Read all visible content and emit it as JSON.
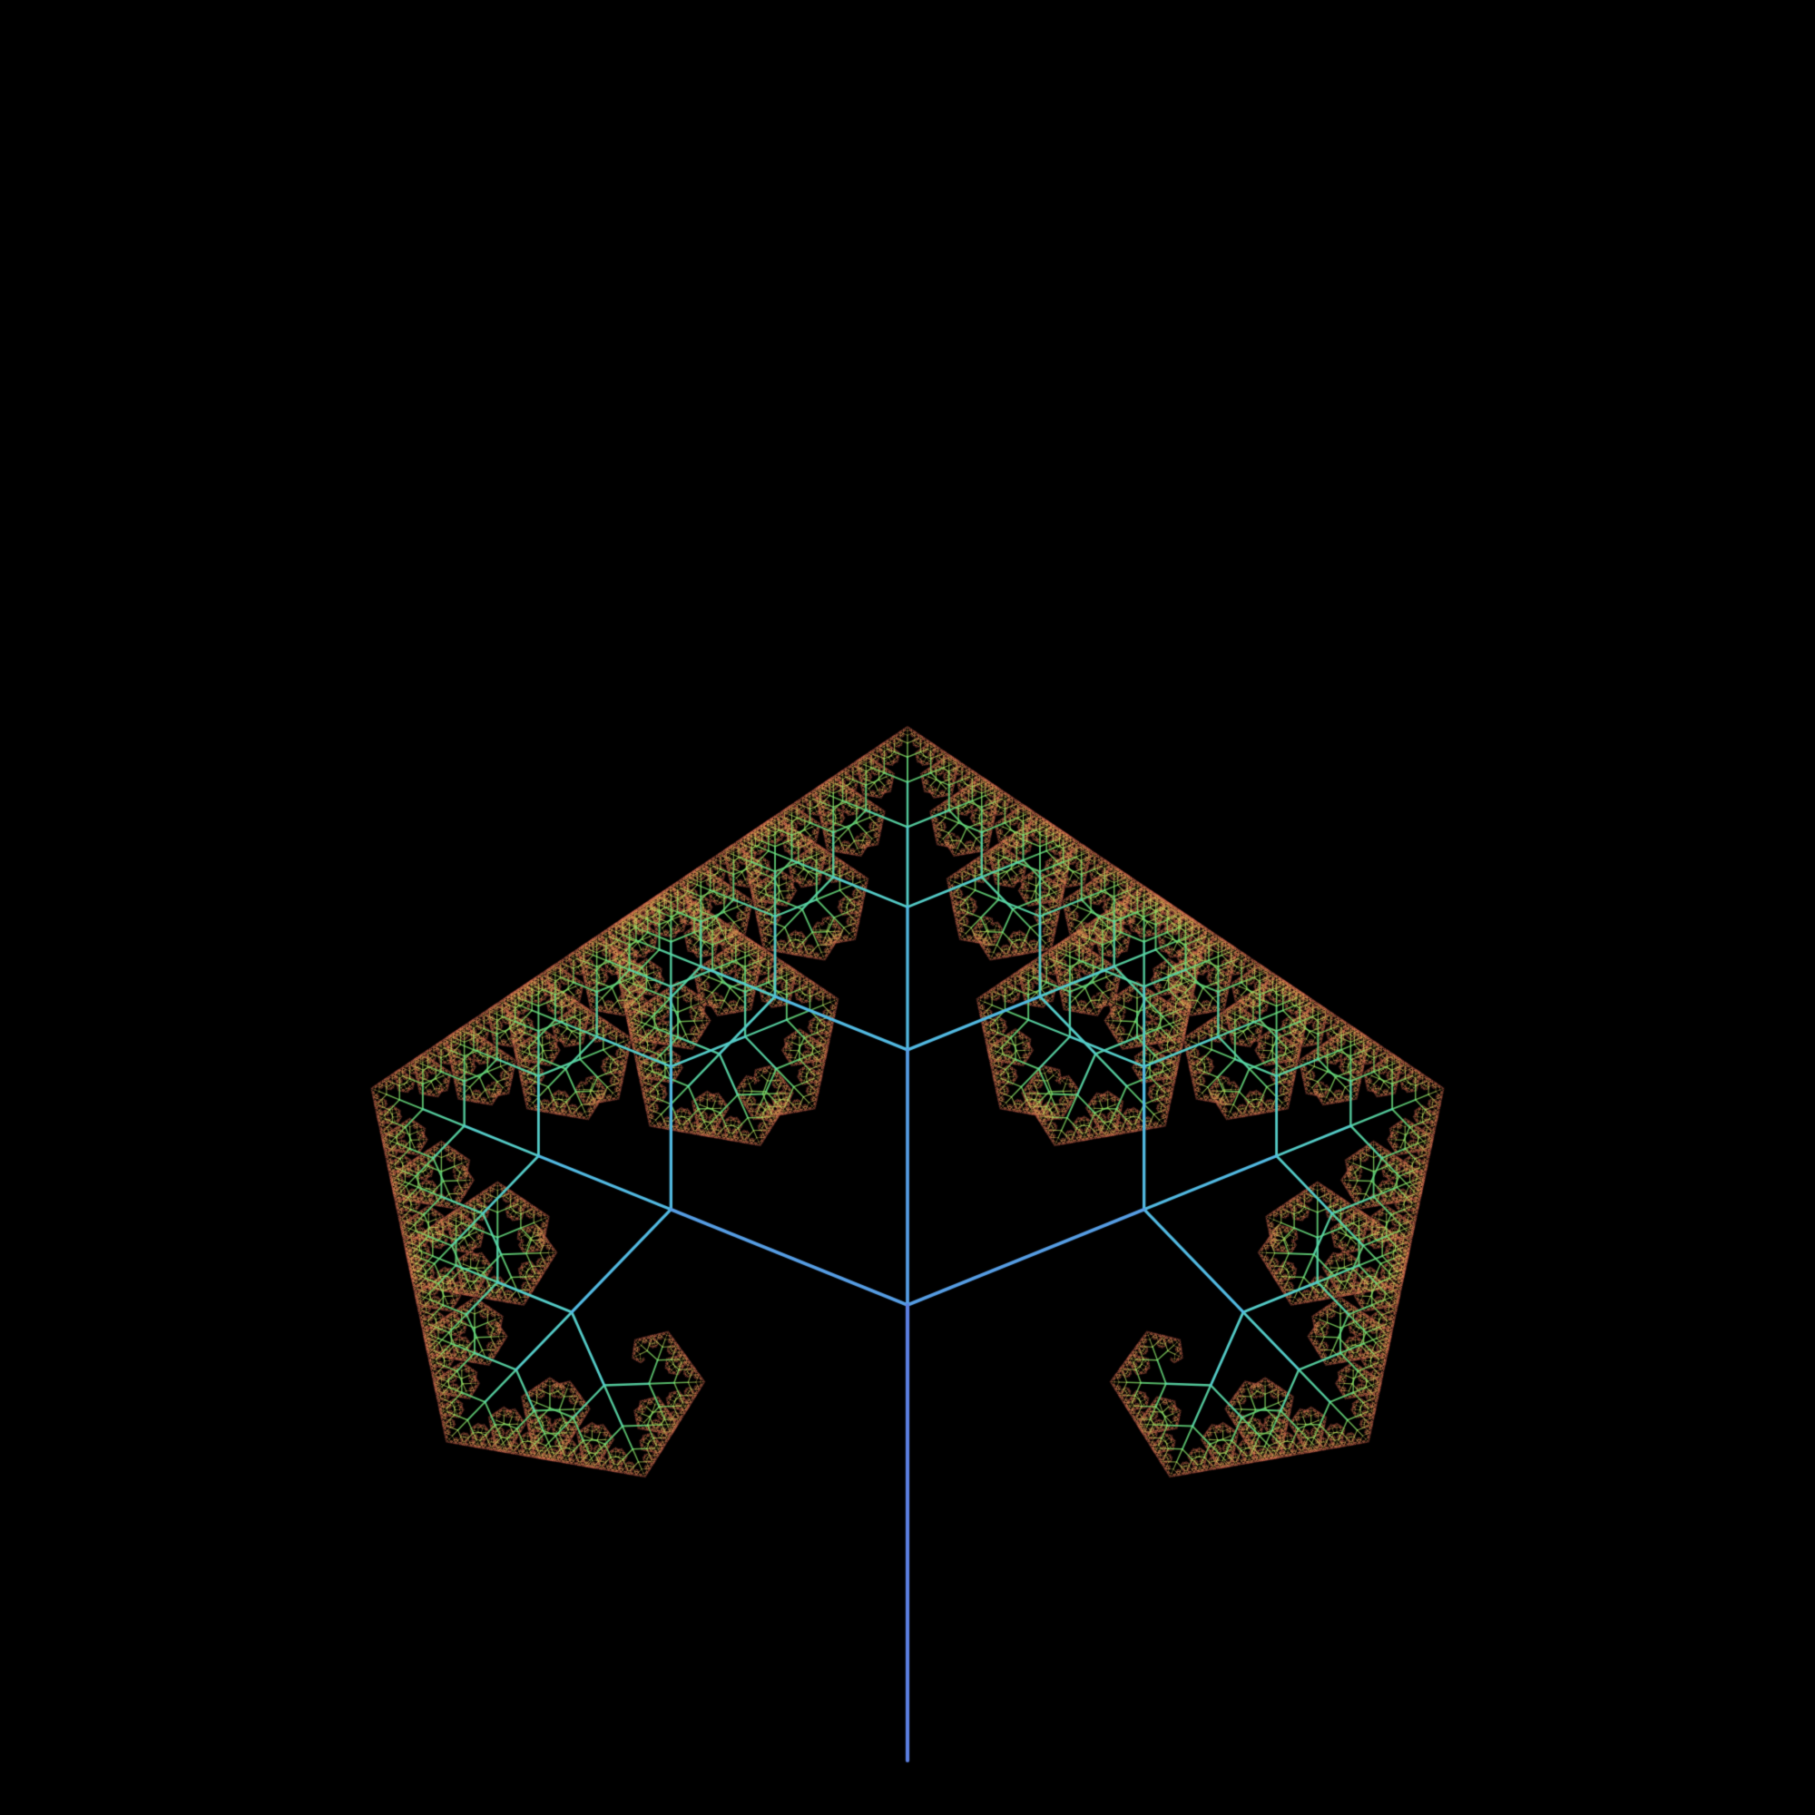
{
  "scene": {
    "subject": "fractal-tree",
    "background_color": "#000000",
    "branching_factor": 3,
    "depth": 11,
    "spread_angles_deg": [
      -68,
      0,
      68
    ],
    "length_ratio": 0.56,
    "palette": [
      "#5b7fe0",
      "#52b6e6",
      "#55d6b4",
      "#6fe06a",
      "#cfe060",
      "#e8a856",
      "#e0665a"
    ]
  }
}
